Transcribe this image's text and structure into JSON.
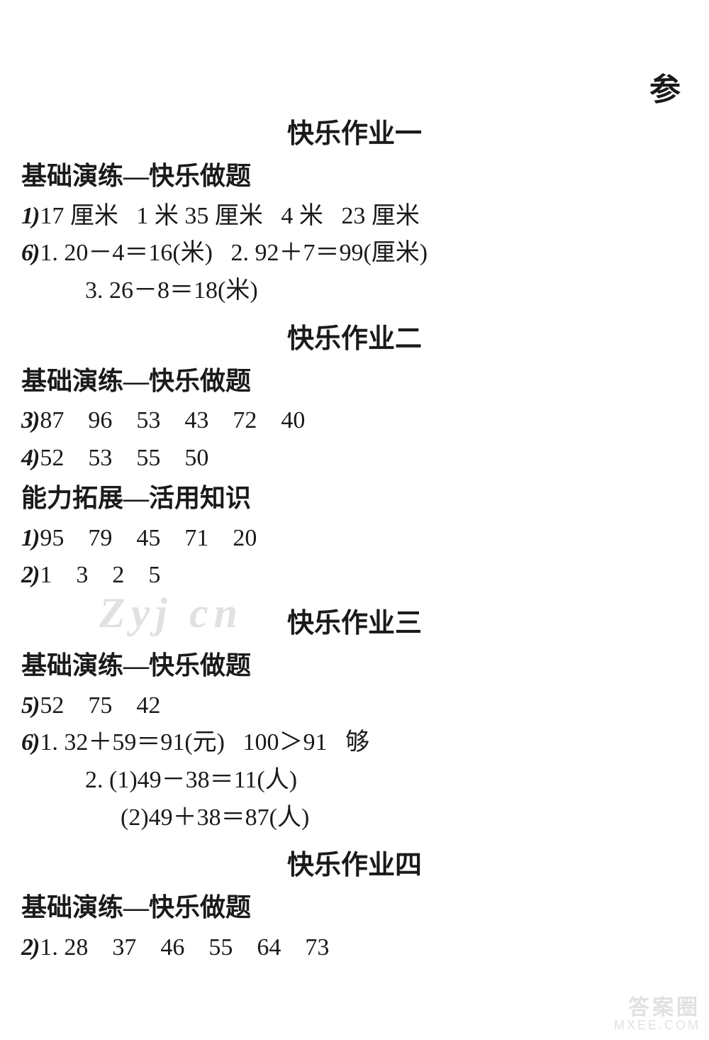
{
  "colors": {
    "text": "#1a1a1a",
    "background": "#ffffff",
    "watermark": "#bdbdbd",
    "center_watermark": "#c9c9c9"
  },
  "typography": {
    "body_font": "SimSun",
    "body_size_pt": 26,
    "title_size_pt": 28,
    "subhead_size_pt": 27
  },
  "top_right": "参",
  "center_watermark": "Zyj  cn",
  "footer_watermark": {
    "line1": "答案圈",
    "line2": "MXEE.COM"
  },
  "sections": [
    {
      "title": "快乐作业一",
      "blocks": [
        {
          "subhead": "基础演练—快乐做题",
          "lines": [
            {
              "marker": "1)",
              "text": "17 厘米   1 米 35 厘米   4 米   23 厘米"
            },
            {
              "marker": "6)",
              "text": "1. 20－4＝16(米)   2. 92＋7＝99(厘米)"
            },
            {
              "marker": "",
              "indent": 1,
              "text": "3. 26－8＝18(米)"
            }
          ]
        }
      ]
    },
    {
      "title": "快乐作业二",
      "blocks": [
        {
          "subhead": "基础演练—快乐做题",
          "lines": [
            {
              "marker": "3)",
              "text": "87    96    53    43    72    40"
            },
            {
              "marker": "4)",
              "text": "52    53    55    50"
            }
          ]
        },
        {
          "subhead": "能力拓展—活用知识",
          "lines": [
            {
              "marker": "1)",
              "text": "95    79    45    71    20"
            },
            {
              "marker": "2)",
              "text": "1    3    2    5"
            }
          ]
        }
      ]
    },
    {
      "title": "快乐作业三",
      "blocks": [
        {
          "subhead": "基础演练—快乐做题",
          "lines": [
            {
              "marker": "5)",
              "text": "52    75    42"
            },
            {
              "marker": "6)",
              "text": "1. 32＋59＝91(元)   100＞91   够"
            },
            {
              "marker": "",
              "indent": 1,
              "text": "2. (1)49－38＝11(人)"
            },
            {
              "marker": "",
              "indent": 2,
              "text": "(2)49＋38＝87(人)"
            }
          ]
        }
      ]
    },
    {
      "title": "快乐作业四",
      "blocks": [
        {
          "subhead": "基础演练—快乐做题",
          "lines": [
            {
              "marker": "2)",
              "text": "1. 28    37    46    55    64    73"
            }
          ]
        }
      ]
    }
  ]
}
